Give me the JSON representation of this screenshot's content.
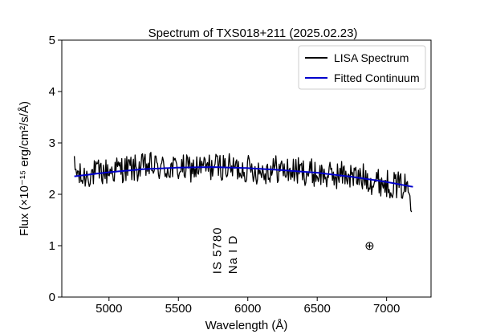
{
  "chart_data": {
    "type": "line",
    "title": "Spectrum of TXS018+211 (2025.02.23)",
    "xlabel": "Wavelength (Å)",
    "ylabel": "Flux (×10⁻¹⁵ erg/cm²/s/Å)",
    "xlim": [
      4660,
      7320
    ],
    "ylim": [
      0,
      5
    ],
    "xticks": [
      5000,
      5500,
      6000,
      6500,
      7000
    ],
    "yticks": [
      0,
      1,
      2,
      3,
      4,
      5
    ],
    "grid": false,
    "legend_position": "top-right",
    "series": [
      {
        "name": "LISA Spectrum",
        "color": "#000000",
        "style": "noisy",
        "x": [
          4750,
          4800,
          4850,
          4900,
          5000,
          5100,
          5200,
          5300,
          5400,
          5500,
          5600,
          5700,
          5800,
          5900,
          6000,
          6100,
          6200,
          6300,
          6400,
          6500,
          6600,
          6700,
          6800,
          6850,
          6900,
          6950,
          7000,
          7050,
          7100,
          7150,
          7180
        ],
        "values": [
          2.5,
          2.3,
          2.4,
          2.4,
          2.45,
          2.5,
          2.5,
          2.55,
          2.5,
          2.5,
          2.5,
          2.52,
          2.55,
          2.5,
          2.5,
          2.45,
          2.5,
          2.45,
          2.45,
          2.4,
          2.35,
          2.4,
          2.3,
          2.35,
          2.25,
          2.25,
          2.2,
          2.2,
          2.15,
          2.15,
          1.9
        ]
      },
      {
        "name": "Fitted Continuum",
        "color": "#0000cc",
        "style": "smooth",
        "x": [
          4750,
          5000,
          5250,
          5500,
          5750,
          6000,
          6250,
          6500,
          6750,
          7000,
          7200
        ],
        "values": [
          2.35,
          2.43,
          2.49,
          2.52,
          2.53,
          2.51,
          2.47,
          2.42,
          2.34,
          2.24,
          2.14
        ]
      }
    ],
    "annotations": [
      {
        "text": "IS 5780",
        "x": 5780,
        "y": 0.45,
        "rotation": -90
      },
      {
        "text": "Na I D",
        "x": 5893,
        "y": 0.45,
        "rotation": -90
      },
      {
        "text": "⊕",
        "x": 6880,
        "y": 1.0,
        "rotation": 0
      }
    ]
  }
}
